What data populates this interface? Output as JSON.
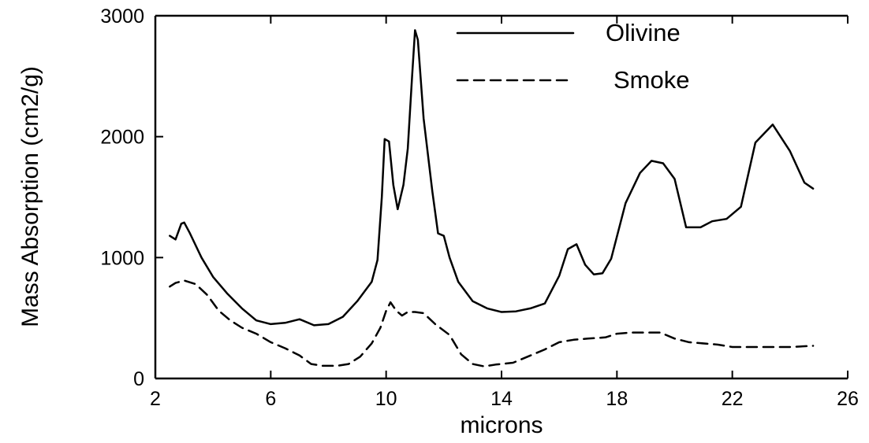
{
  "chart_data": {
    "type": "line",
    "title": "",
    "xlabel": "microns",
    "ylabel": "Mass Absorption (cm2/g)",
    "xlim": [
      2,
      26
    ],
    "ylim": [
      0,
      3000
    ],
    "x_ticks": [
      "2",
      "6",
      "10",
      "14",
      "18",
      "22",
      "26"
    ],
    "y_ticks": [
      "0",
      "1000",
      "2000",
      "3000"
    ],
    "grid": false,
    "legend_position": "top-right",
    "series": [
      {
        "name": "Olivine",
        "line_style": "solid",
        "color": "#000000",
        "points": [
          [
            2.5,
            1180
          ],
          [
            2.7,
            1150
          ],
          [
            2.9,
            1280
          ],
          [
            3.0,
            1290
          ],
          [
            3.2,
            1200
          ],
          [
            3.6,
            1000
          ],
          [
            4.0,
            840
          ],
          [
            4.5,
            700
          ],
          [
            5.0,
            580
          ],
          [
            5.5,
            480
          ],
          [
            6.0,
            450
          ],
          [
            6.5,
            460
          ],
          [
            7.0,
            490
          ],
          [
            7.5,
            440
          ],
          [
            8.0,
            450
          ],
          [
            8.5,
            510
          ],
          [
            9.0,
            640
          ],
          [
            9.5,
            800
          ],
          [
            9.7,
            980
          ],
          [
            9.85,
            1500
          ],
          [
            9.95,
            1980
          ],
          [
            10.1,
            1960
          ],
          [
            10.25,
            1600
          ],
          [
            10.4,
            1400
          ],
          [
            10.6,
            1600
          ],
          [
            10.75,
            1900
          ],
          [
            10.9,
            2500
          ],
          [
            11.0,
            2880
          ],
          [
            11.1,
            2800
          ],
          [
            11.3,
            2150
          ],
          [
            11.6,
            1550
          ],
          [
            11.8,
            1200
          ],
          [
            12.0,
            1180
          ],
          [
            12.2,
            1000
          ],
          [
            12.5,
            800
          ],
          [
            13.0,
            640
          ],
          [
            13.5,
            580
          ],
          [
            14.0,
            550
          ],
          [
            14.5,
            555
          ],
          [
            15.0,
            580
          ],
          [
            15.5,
            620
          ],
          [
            16.0,
            850
          ],
          [
            16.3,
            1070
          ],
          [
            16.6,
            1110
          ],
          [
            16.9,
            940
          ],
          [
            17.2,
            860
          ],
          [
            17.5,
            870
          ],
          [
            17.8,
            990
          ],
          [
            18.3,
            1450
          ],
          [
            18.8,
            1700
          ],
          [
            19.2,
            1800
          ],
          [
            19.6,
            1780
          ],
          [
            20.0,
            1650
          ],
          [
            20.4,
            1250
          ],
          [
            20.9,
            1250
          ],
          [
            21.3,
            1300
          ],
          [
            21.8,
            1320
          ],
          [
            22.3,
            1420
          ],
          [
            22.8,
            1950
          ],
          [
            23.4,
            2100
          ],
          [
            24.0,
            1880
          ],
          [
            24.5,
            1620
          ],
          [
            24.8,
            1570
          ]
        ]
      },
      {
        "name": "Smoke",
        "line_style": "dashed",
        "color": "#000000",
        "points": [
          [
            2.5,
            760
          ],
          [
            2.7,
            790
          ],
          [
            3.0,
            810
          ],
          [
            3.4,
            780
          ],
          [
            3.8,
            690
          ],
          [
            4.2,
            560
          ],
          [
            4.6,
            480
          ],
          [
            5.0,
            420
          ],
          [
            5.5,
            370
          ],
          [
            6.0,
            300
          ],
          [
            6.5,
            250
          ],
          [
            7.0,
            190
          ],
          [
            7.4,
            120
          ],
          [
            7.8,
            105
          ],
          [
            8.3,
            105
          ],
          [
            8.7,
            120
          ],
          [
            9.1,
            180
          ],
          [
            9.5,
            290
          ],
          [
            9.8,
            420
          ],
          [
            10.0,
            560
          ],
          [
            10.15,
            630
          ],
          [
            10.35,
            560
          ],
          [
            10.55,
            520
          ],
          [
            10.75,
            550
          ],
          [
            11.0,
            550
          ],
          [
            11.3,
            540
          ],
          [
            11.7,
            450
          ],
          [
            12.2,
            360
          ],
          [
            12.6,
            200
          ],
          [
            13.0,
            120
          ],
          [
            13.4,
            100
          ],
          [
            13.8,
            115
          ],
          [
            14.4,
            130
          ],
          [
            15.0,
            190
          ],
          [
            15.5,
            240
          ],
          [
            16.0,
            300
          ],
          [
            16.5,
            320
          ],
          [
            17.0,
            330
          ],
          [
            17.6,
            340
          ],
          [
            18.0,
            370
          ],
          [
            18.5,
            380
          ],
          [
            19.5,
            380
          ],
          [
            20.0,
            330
          ],
          [
            20.5,
            300
          ],
          [
            21.5,
            280
          ],
          [
            22.0,
            260
          ],
          [
            23.0,
            260
          ],
          [
            24.0,
            260
          ],
          [
            24.8,
            270
          ]
        ]
      }
    ]
  }
}
